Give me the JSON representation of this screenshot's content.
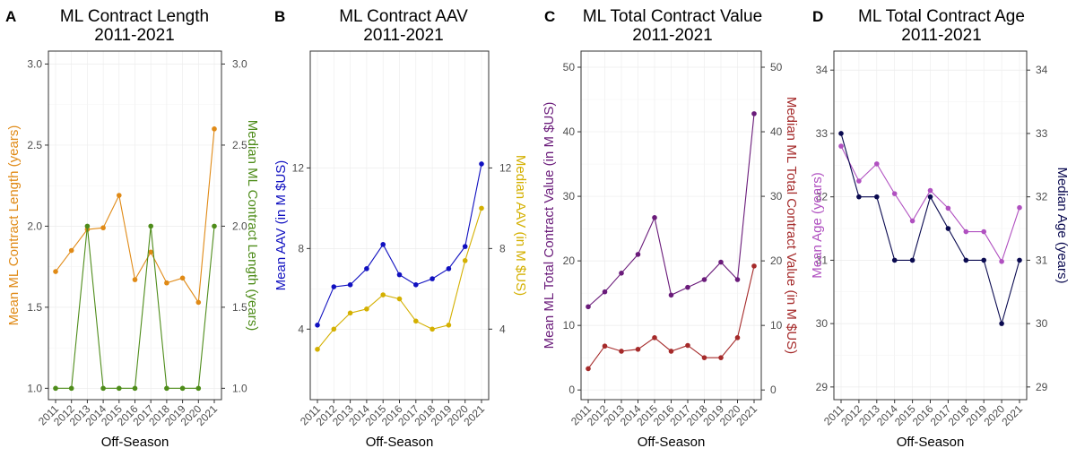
{
  "chart_data": [
    {
      "type": "line",
      "panel": "A",
      "title": "ML Contract Length",
      "subtitle": "2011-2021",
      "xlabel": "Off-Season",
      "x": [
        "2011",
        "2012",
        "2013",
        "2014",
        "2015",
        "2016",
        "2017",
        "2018",
        "2019",
        "2020",
        "2021"
      ],
      "ylim": [
        0.93,
        3.08
      ],
      "yticks": [
        1.0,
        1.5,
        2.0,
        2.5,
        3.0
      ],
      "tick_labels": [
        "1.0",
        "1.5",
        "2.0",
        "2.5",
        "3.0"
      ],
      "grid": true,
      "series": [
        {
          "name": "Mean ML Contract Length (years)",
          "axis": "left",
          "color": "#E08A16",
          "values": [
            1.72,
            1.85,
            1.98,
            1.99,
            2.19,
            1.67,
            1.84,
            1.65,
            1.68,
            1.53,
            2.6
          ]
        },
        {
          "name": "Median ML Contract Length (years)",
          "axis": "right",
          "color": "#4E8C1A",
          "values": [
            1,
            1,
            2,
            1,
            1,
            1,
            2,
            1,
            1,
            1,
            2
          ]
        }
      ]
    },
    {
      "type": "line",
      "panel": "B",
      "title": "ML Contract AAV",
      "subtitle": "2011-2021",
      "xlabel": "Off-Season",
      "x": [
        "2011",
        "2012",
        "2013",
        "2014",
        "2015",
        "2016",
        "2017",
        "2018",
        "2019",
        "2020",
        "2021"
      ],
      "ylim": [
        0.5,
        17.8
      ],
      "yticks": [
        4,
        8,
        12
      ],
      "tick_labels": [
        "4",
        "8",
        "12"
      ],
      "grid": true,
      "series": [
        {
          "name": "Mean AAV (in M $US)",
          "axis": "left",
          "color": "#1010C0",
          "values": [
            4.2,
            6.1,
            6.2,
            7.0,
            8.2,
            6.7,
            6.2,
            6.5,
            7.0,
            8.1,
            12.2
          ]
        },
        {
          "name": "Median AAV (in M $US)",
          "axis": "right",
          "color": "#D4B000",
          "values": [
            3.0,
            4.0,
            4.8,
            5.0,
            5.7,
            5.5,
            4.4,
            4.0,
            4.2,
            7.4,
            10.0
          ]
        }
      ]
    },
    {
      "type": "line",
      "panel": "C",
      "title": "ML Total Contract Value",
      "subtitle": "2011-2021",
      "xlabel": "Off-Season",
      "x": [
        "2011",
        "2012",
        "2013",
        "2014",
        "2015",
        "2016",
        "2017",
        "2018",
        "2019",
        "2020",
        "2021"
      ],
      "ylim": [
        -1.5,
        52.5
      ],
      "yticks": [
        0,
        10,
        20,
        30,
        40,
        50
      ],
      "tick_labels": [
        "0",
        "10",
        "20",
        "30",
        "40",
        "50"
      ],
      "grid": true,
      "series": [
        {
          "name": "Mean ML Total Contract Value (in M $US)",
          "axis": "left",
          "color": "#6A1B7A",
          "values": [
            12.9,
            15.2,
            18.1,
            21.0,
            26.7,
            14.7,
            15.9,
            17.1,
            19.8,
            17.1,
            42.8
          ]
        },
        {
          "name": "Median ML Total Contract Value (in M $US)",
          "axis": "right",
          "color": "#A52A2A",
          "values": [
            3.3,
            6.8,
            6.0,
            6.3,
            8.1,
            6.0,
            6.9,
            5.0,
            5.0,
            8.1,
            19.2
          ]
        }
      ]
    },
    {
      "type": "line",
      "panel": "D",
      "title": "ML Total Contract Age",
      "subtitle": "2011-2021",
      "xlabel": "Off-Season",
      "x": [
        "2011",
        "2012",
        "2013",
        "2014",
        "2015",
        "2016",
        "2017",
        "2018",
        "2019",
        "2020",
        "2021"
      ],
      "ylim": [
        28.8,
        34.3
      ],
      "yticks": [
        29,
        30,
        31,
        32,
        33,
        34
      ],
      "tick_labels": [
        "29",
        "30",
        "31",
        "32",
        "33",
        "34"
      ],
      "grid": true,
      "series": [
        {
          "name": "Mean Age (years)",
          "axis": "left",
          "color": "#B050C0",
          "values": [
            32.8,
            32.25,
            32.52,
            32.05,
            31.62,
            32.1,
            31.82,
            31.45,
            31.45,
            30.98,
            31.83
          ]
        },
        {
          "name": "Median Age (years)",
          "axis": "right",
          "color": "#0A0A50",
          "values": [
            33,
            32,
            32,
            31,
            31,
            32,
            31.5,
            31,
            31,
            30,
            31
          ]
        }
      ]
    }
  ]
}
